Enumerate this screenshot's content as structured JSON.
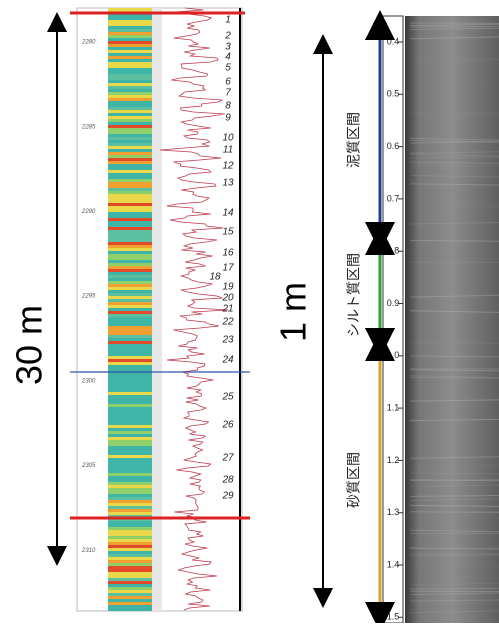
{
  "left_panel": {
    "scale_label": "30 m",
    "depth_labels": [
      "2280",
      "2285",
      "2290",
      "2295",
      "2300",
      "2305",
      "2310"
    ],
    "bed_numbers": [
      "1",
      "2",
      "3",
      "4",
      "5",
      "6",
      "7",
      "8",
      "9",
      "10",
      "11",
      "12",
      "13",
      "14",
      "15",
      "16",
      "17",
      "18",
      "19",
      "20",
      "21",
      "22",
      "23",
      "24",
      "25",
      "26",
      "27",
      "28",
      "29"
    ]
  },
  "right_panel": {
    "scale_label": "1 m",
    "depth_ticks": [
      "0.4",
      "0.5",
      "0.6",
      "0.7",
      "0.8",
      "0.9",
      "1.0",
      "1.1",
      "1.2",
      "1.3",
      "1.4",
      "1.5"
    ],
    "intervals": [
      {
        "label": "泥質区間",
        "color": "#1f3f8f"
      },
      {
        "label": "シルト質区間",
        "color": "#2e9e3a"
      },
      {
        "label": "砂質区間",
        "color": "#d9a520"
      }
    ]
  }
}
